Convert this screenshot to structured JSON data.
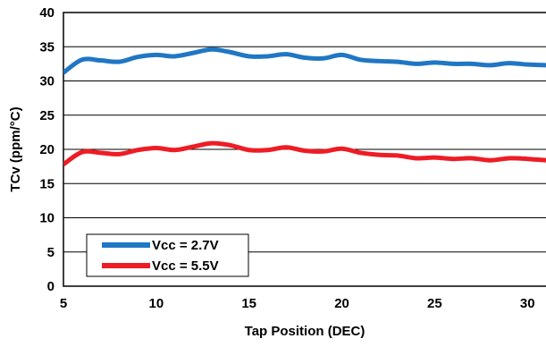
{
  "chart_data": {
    "type": "line",
    "xlabel": "Tap Position (DEC)",
    "ylabel": "TCv (ppm/°C)",
    "xlim": [
      5,
      31
    ],
    "ylim": [
      0,
      40
    ],
    "xticks": [
      "5",
      "10",
      "15",
      "20",
      "25",
      "30"
    ],
    "yticks": [
      "0",
      "5",
      "10",
      "15",
      "20",
      "25",
      "30",
      "35",
      "40"
    ],
    "grid": "horizontal",
    "legend_position": "bottom-left",
    "series": [
      {
        "name": "Vcc = 2.7V",
        "color": "#1f77c4",
        "x": [
          5,
          6,
          7,
          8,
          9,
          10,
          11,
          12,
          13,
          14,
          15,
          16,
          17,
          18,
          19,
          20,
          21,
          22,
          23,
          24,
          25,
          26,
          27,
          28,
          29,
          30,
          31
        ],
        "y": [
          31.2,
          33.1,
          33.0,
          32.8,
          33.5,
          33.8,
          33.6,
          34.1,
          34.6,
          34.2,
          33.6,
          33.6,
          33.9,
          33.4,
          33.3,
          33.8,
          33.1,
          32.9,
          32.8,
          32.5,
          32.7,
          32.5,
          32.5,
          32.3,
          32.6,
          32.4,
          32.3
        ]
      },
      {
        "name": "Vcc = 5.5V",
        "color": "#ee1c25",
        "x": [
          5,
          6,
          7,
          8,
          9,
          10,
          11,
          12,
          13,
          14,
          15,
          16,
          17,
          18,
          19,
          20,
          21,
          22,
          23,
          24,
          25,
          26,
          27,
          28,
          29,
          30,
          31
        ],
        "y": [
          17.8,
          19.6,
          19.5,
          19.3,
          19.9,
          20.2,
          19.9,
          20.4,
          20.9,
          20.6,
          19.9,
          19.9,
          20.3,
          19.8,
          19.7,
          20.1,
          19.5,
          19.2,
          19.1,
          18.7,
          18.8,
          18.6,
          18.7,
          18.4,
          18.7,
          18.6,
          18.4
        ]
      }
    ]
  }
}
